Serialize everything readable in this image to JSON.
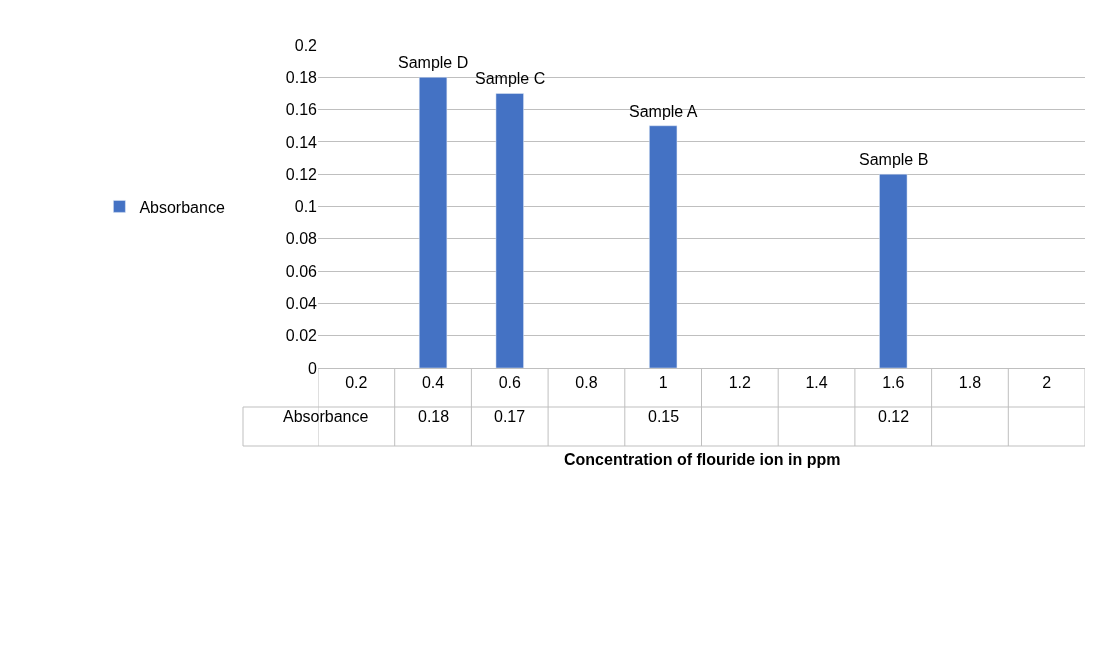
{
  "chart_data": {
    "type": "bar",
    "xlabel": "Concentration of flouride ion in ppm",
    "categories": [
      "0.2",
      "0.4",
      "0.6",
      "0.8",
      "1",
      "1.2",
      "1.4",
      "1.6",
      "1.8",
      "2"
    ],
    "series": [
      {
        "name": "Absorbance",
        "color": "#4472c4",
        "values": [
          null,
          0.18,
          0.17,
          null,
          0.15,
          null,
          null,
          0.12,
          null,
          null
        ]
      }
    ],
    "ylim": [
      0,
      0.2
    ],
    "yticks": [
      0,
      0.02,
      0.04,
      0.06,
      0.08,
      0.1,
      0.12,
      0.14,
      0.16,
      0.18,
      0.2
    ],
    "grid": "y",
    "legend": "left",
    "data_labels": true,
    "annotations": [
      {
        "text": "Sample D",
        "x": "0.4",
        "y": 0.18
      },
      {
        "text": "Sample C",
        "x": "0.6",
        "y": 0.17
      },
      {
        "text": "Sample A",
        "x": "1",
        "y": 0.15
      },
      {
        "text": "Sample B",
        "x": "1.6",
        "y": 0.12
      }
    ]
  }
}
